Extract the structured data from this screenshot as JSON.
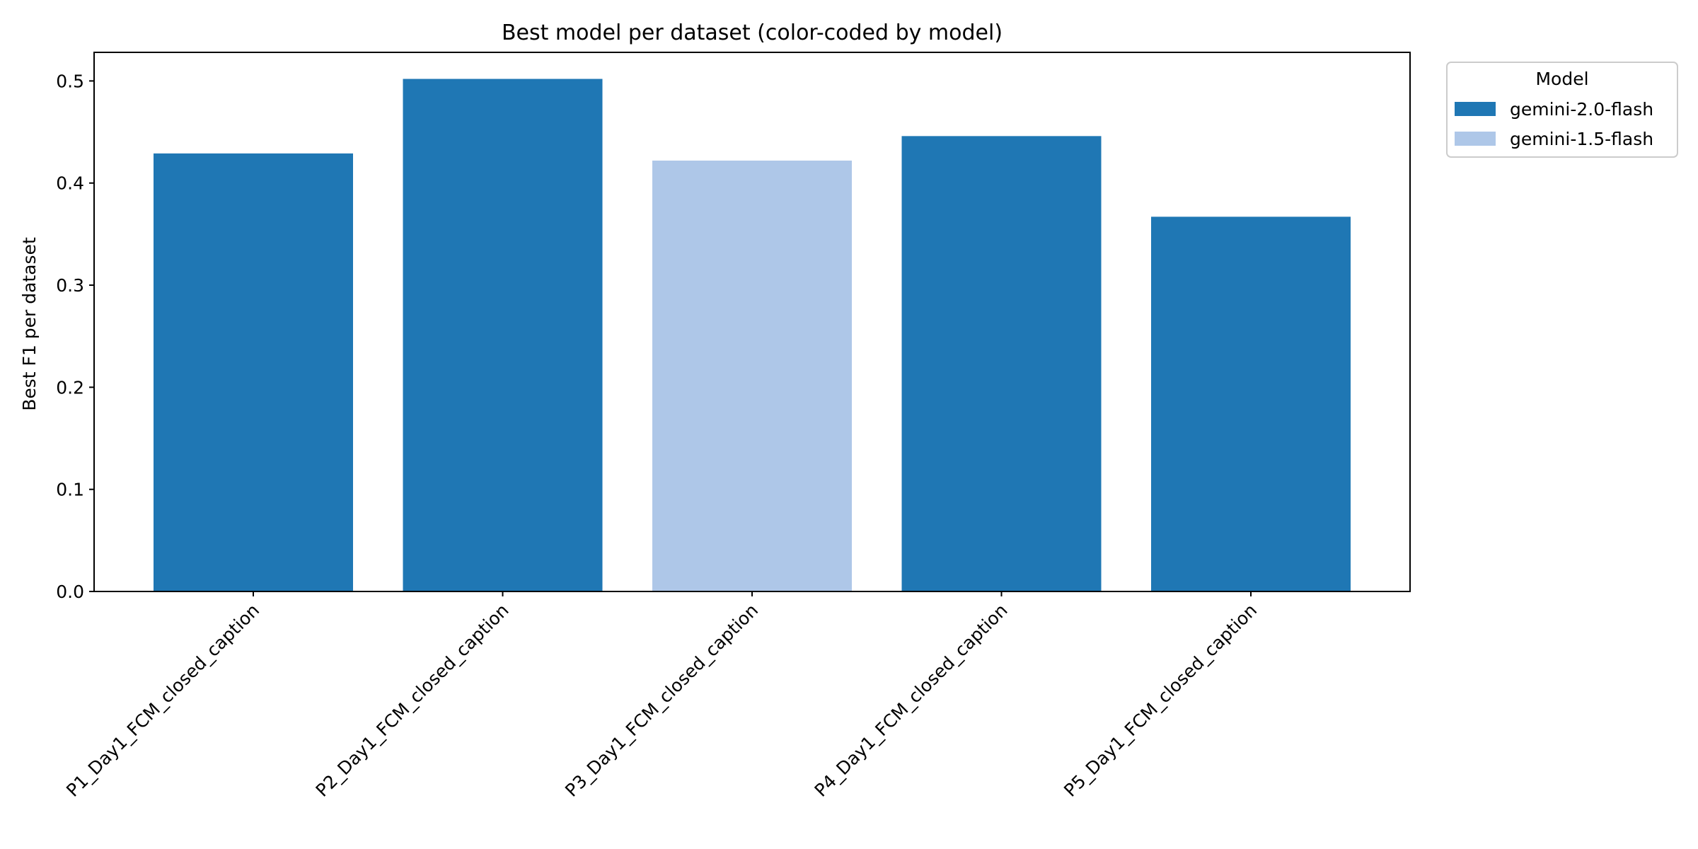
{
  "chart_data": {
    "type": "bar",
    "title": "Best model per dataset (color-coded by model)",
    "xlabel": "",
    "ylabel": "Best F1 per dataset",
    "ylim": [
      0,
      0.528
    ],
    "yticks": [
      0.0,
      0.1,
      0.2,
      0.3,
      0.4,
      0.5
    ],
    "ytick_labels": [
      "0.0",
      "0.1",
      "0.2",
      "0.3",
      "0.4",
      "0.5"
    ],
    "grid": false,
    "categories": [
      "P1_Day1_FCM_closed_caption",
      "P2_Day1_FCM_closed_caption",
      "P3_Day1_FCM_closed_caption",
      "P4_Day1_FCM_closed_caption",
      "P5_Day1_FCM_closed_caption"
    ],
    "values": [
      0.429,
      0.502,
      0.422,
      0.446,
      0.367
    ],
    "models": [
      "gemini-2.0-flash",
      "gemini-2.0-flash",
      "gemini-1.5-flash",
      "gemini-2.0-flash",
      "gemini-2.0-flash"
    ],
    "legend": {
      "title": "Model",
      "placement": "outside-top-right",
      "entries": [
        {
          "label": "gemini-2.0-flash",
          "color": "#1f77b4"
        },
        {
          "label": "gemini-1.5-flash",
          "color": "#aec7e8"
        }
      ]
    }
  }
}
